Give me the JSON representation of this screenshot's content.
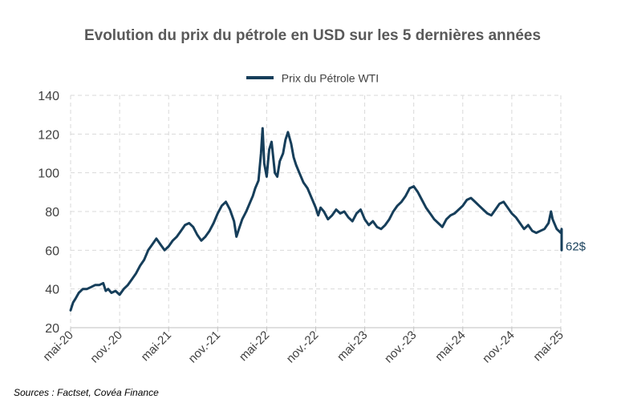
{
  "chart_data": {
    "type": "line",
    "title": "Evolution du prix du pétrole en USD sur les 5 dernières années",
    "legend": {
      "position": "top",
      "entries": [
        "Prix du Pétrole WTI"
      ]
    },
    "series": [
      {
        "name": "Prix du Pétrole WTI",
        "color": "#163e5a",
        "points": [
          [
            0,
            29
          ],
          [
            0.3,
            33
          ],
          [
            0.6,
            35
          ],
          [
            1,
            38
          ],
          [
            1.5,
            40
          ],
          [
            2,
            40
          ],
          [
            2.5,
            41
          ],
          [
            3,
            42
          ],
          [
            3.5,
            42
          ],
          [
            4,
            43
          ],
          [
            4.3,
            39
          ],
          [
            4.6,
            40
          ],
          [
            5,
            38
          ],
          [
            5.5,
            39
          ],
          [
            6,
            37
          ],
          [
            6.5,
            40
          ],
          [
            7,
            42
          ],
          [
            7.5,
            45
          ],
          [
            8,
            48
          ],
          [
            8.5,
            52
          ],
          [
            9,
            55
          ],
          [
            9.5,
            60
          ],
          [
            10,
            63
          ],
          [
            10.5,
            66
          ],
          [
            11,
            63
          ],
          [
            11.5,
            60
          ],
          [
            12,
            62
          ],
          [
            12.5,
            65
          ],
          [
            13,
            67
          ],
          [
            13.5,
            70
          ],
          [
            14,
            73
          ],
          [
            14.5,
            74
          ],
          [
            15,
            72
          ],
          [
            15.5,
            68
          ],
          [
            16,
            65
          ],
          [
            16.5,
            67
          ],
          [
            17,
            70
          ],
          [
            17.5,
            74
          ],
          [
            18,
            79
          ],
          [
            18.5,
            83
          ],
          [
            19,
            85
          ],
          [
            19.5,
            81
          ],
          [
            20,
            75
          ],
          [
            20.3,
            67
          ],
          [
            20.6,
            71
          ],
          [
            21,
            76
          ],
          [
            21.5,
            80
          ],
          [
            22,
            85
          ],
          [
            22.3,
            88
          ],
          [
            22.6,
            92
          ],
          [
            23,
            96
          ],
          [
            23.3,
            110
          ],
          [
            23.5,
            123
          ],
          [
            23.7,
            105
          ],
          [
            24,
            98
          ],
          [
            24.3,
            112
          ],
          [
            24.6,
            116
          ],
          [
            25,
            100
          ],
          [
            25.3,
            98
          ],
          [
            25.6,
            106
          ],
          [
            26,
            110
          ],
          [
            26.3,
            117
          ],
          [
            26.6,
            121
          ],
          [
            27,
            115
          ],
          [
            27.3,
            108
          ],
          [
            27.6,
            104
          ],
          [
            28,
            100
          ],
          [
            28.5,
            95
          ],
          [
            29,
            92
          ],
          [
            29.5,
            87
          ],
          [
            30,
            82
          ],
          [
            30.3,
            78
          ],
          [
            30.6,
            82
          ],
          [
            31,
            80
          ],
          [
            31.5,
            76
          ],
          [
            32,
            78
          ],
          [
            32.5,
            81
          ],
          [
            33,
            79
          ],
          [
            33.5,
            80
          ],
          [
            34,
            77
          ],
          [
            34.5,
            75
          ],
          [
            35,
            79
          ],
          [
            35.5,
            81
          ],
          [
            36,
            76
          ],
          [
            36.5,
            73
          ],
          [
            37,
            75
          ],
          [
            37.5,
            72
          ],
          [
            38,
            71
          ],
          [
            38.5,
            73
          ],
          [
            39,
            76
          ],
          [
            39.5,
            80
          ],
          [
            40,
            83
          ],
          [
            40.5,
            85
          ],
          [
            41,
            88
          ],
          [
            41.5,
            92
          ],
          [
            42,
            93
          ],
          [
            42.5,
            90
          ],
          [
            43,
            86
          ],
          [
            43.5,
            82
          ],
          [
            44,
            79
          ],
          [
            44.5,
            76
          ],
          [
            45,
            74
          ],
          [
            45.5,
            72
          ],
          [
            46,
            76
          ],
          [
            46.5,
            78
          ],
          [
            47,
            79
          ],
          [
            47.5,
            81
          ],
          [
            48,
            83
          ],
          [
            48.5,
            86
          ],
          [
            49,
            87
          ],
          [
            49.5,
            85
          ],
          [
            50,
            83
          ],
          [
            50.5,
            81
          ],
          [
            51,
            79
          ],
          [
            51.5,
            78
          ],
          [
            52,
            81
          ],
          [
            52.5,
            84
          ],
          [
            53,
            85
          ],
          [
            53.5,
            82
          ],
          [
            54,
            79
          ],
          [
            54.5,
            77
          ],
          [
            55,
            74
          ],
          [
            55.5,
            71
          ],
          [
            56,
            73
          ],
          [
            56.5,
            70
          ],
          [
            57,
            69
          ],
          [
            57.5,
            70
          ],
          [
            58,
            71
          ],
          [
            58.5,
            74
          ],
          [
            58.8,
            80
          ],
          [
            59,
            76
          ],
          [
            59.5,
            71
          ],
          [
            60,
            69
          ],
          [
            60.5,
            71
          ],
          [
            61,
            64
          ],
          [
            61.3,
            62
          ],
          [
            61.6,
            60
          ],
          [
            62,
            62
          ]
        ]
      }
    ],
    "end_label": "62$",
    "xlabel": "",
    "ylabel": "",
    "xlim": [
      0,
      60
    ],
    "ylim": [
      20,
      140
    ],
    "yticks": [
      20,
      40,
      60,
      80,
      100,
      120,
      140
    ],
    "xticks": [
      {
        "month": 0,
        "label": "mai-20"
      },
      {
        "month": 6,
        "label": "nov.-20"
      },
      {
        "month": 12,
        "label": "mai-21"
      },
      {
        "month": 18,
        "label": "nov.-21"
      },
      {
        "month": 24,
        "label": "mai-22"
      },
      {
        "month": 30,
        "label": "nov.-22"
      },
      {
        "month": 36,
        "label": "mai-23"
      },
      {
        "month": 42,
        "label": "nov.-23"
      },
      {
        "month": 48,
        "label": "mai-24"
      },
      {
        "month": 54,
        "label": "nov.-24"
      },
      {
        "month": 60,
        "label": "mai-25"
      }
    ],
    "grid": true
  },
  "source": "Sources : Factset, Covéa Finance"
}
